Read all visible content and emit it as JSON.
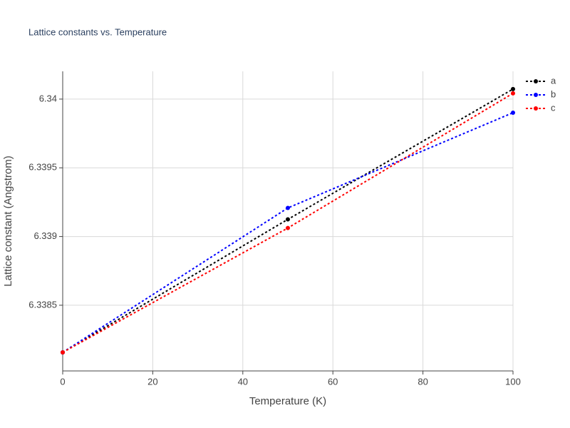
{
  "chart_data": {
    "type": "line",
    "title": "Lattice constants vs. Temperature",
    "x_label": "Temperature (K)",
    "y_label": "Lattice constant (Angstrom)",
    "x": [
      0,
      50,
      100
    ],
    "series": [
      {
        "name": "a",
        "color": "#000000",
        "values": [
          6.338157,
          6.339125,
          6.340073
        ]
      },
      {
        "name": "b",
        "color": "#0000ff",
        "values": [
          6.338157,
          6.339208,
          6.339901
        ]
      },
      {
        "name": "c",
        "color": "#ff0000",
        "values": [
          6.338157,
          6.339062,
          6.340042
        ]
      }
    ],
    "xlim": [
      0,
      100
    ],
    "xticks": [
      0,
      20,
      40,
      60,
      80,
      100
    ],
    "ylim": [
      6.338022,
      6.340202
    ],
    "yticks": [
      6.3385,
      6.339,
      6.3395,
      6.34
    ],
    "grid": true,
    "legend": "right",
    "line_style": "dot"
  }
}
